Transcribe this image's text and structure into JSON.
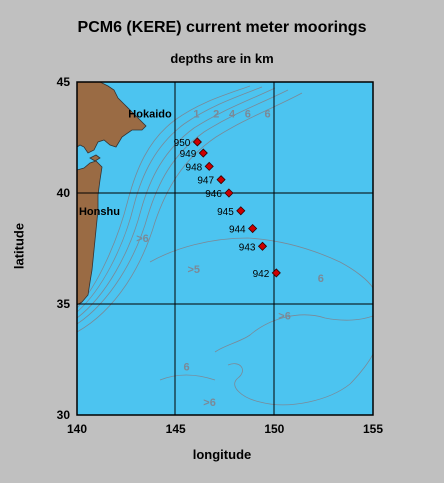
{
  "title": "PCM6 (KERE) current meter moorings",
  "subtitle": "depths are in km",
  "chart_data": {
    "type": "scatter",
    "title": "PCM6 (KERE) current meter moorings",
    "subtitle": "depths are in km",
    "xlabel": "longitude",
    "ylabel": "latitude",
    "xlim": [
      140,
      155
    ],
    "ylim": [
      30,
      45
    ],
    "x_ticks": [
      "140",
      "145",
      "150",
      "155"
    ],
    "y_ticks": [
      "30",
      "35",
      "40",
      "45"
    ],
    "grid": true,
    "colors": {
      "ocean": "#4cc4f0",
      "land": "#9a6b44",
      "marker": "#cc0000",
      "contour": "#7a8a98",
      "frame": "#000000"
    },
    "moorings": [
      {
        "label": "950",
        "lon": 146.1,
        "lat": 42.3
      },
      {
        "label": "949",
        "lon": 146.4,
        "lat": 41.8
      },
      {
        "label": "948",
        "lon": 146.7,
        "lat": 41.2
      },
      {
        "label": "947",
        "lon": 147.3,
        "lat": 40.6
      },
      {
        "label": "946",
        "lon": 147.7,
        "lat": 40.0
      },
      {
        "label": "945",
        "lon": 148.3,
        "lat": 39.2
      },
      {
        "label": "944",
        "lon": 148.9,
        "lat": 38.4
      },
      {
        "label": "943",
        "lon": 149.4,
        "lat": 37.6
      },
      {
        "label": "942",
        "lon": 150.1,
        "lat": 36.4
      }
    ],
    "place_labels": [
      {
        "text": "Hokaido",
        "lon": 142.6,
        "lat": 43.4
      },
      {
        "text": "Honshu",
        "lon": 140.1,
        "lat": 39.0
      }
    ],
    "contour_labels": [
      {
        "text": "1",
        "lon": 145.9,
        "lat": 43.4
      },
      {
        "text": "2",
        "lon": 146.9,
        "lat": 43.4
      },
      {
        "text": "4",
        "lon": 147.7,
        "lat": 43.4
      },
      {
        "text": "6",
        "lon": 148.5,
        "lat": 43.4
      },
      {
        "text": "6",
        "lon": 149.5,
        "lat": 43.4
      },
      {
        "text": ">6",
        "lon": 143.0,
        "lat": 37.8
      },
      {
        "text": ">5",
        "lon": 145.6,
        "lat": 36.4
      },
      {
        "text": "6",
        "lon": 152.2,
        "lat": 36.0
      },
      {
        "text": ">6",
        "lon": 150.2,
        "lat": 34.3
      },
      {
        "text": "6",
        "lon": 145.4,
        "lat": 32.0
      },
      {
        "text": ">6",
        "lon": 146.4,
        "lat": 30.4
      }
    ]
  }
}
